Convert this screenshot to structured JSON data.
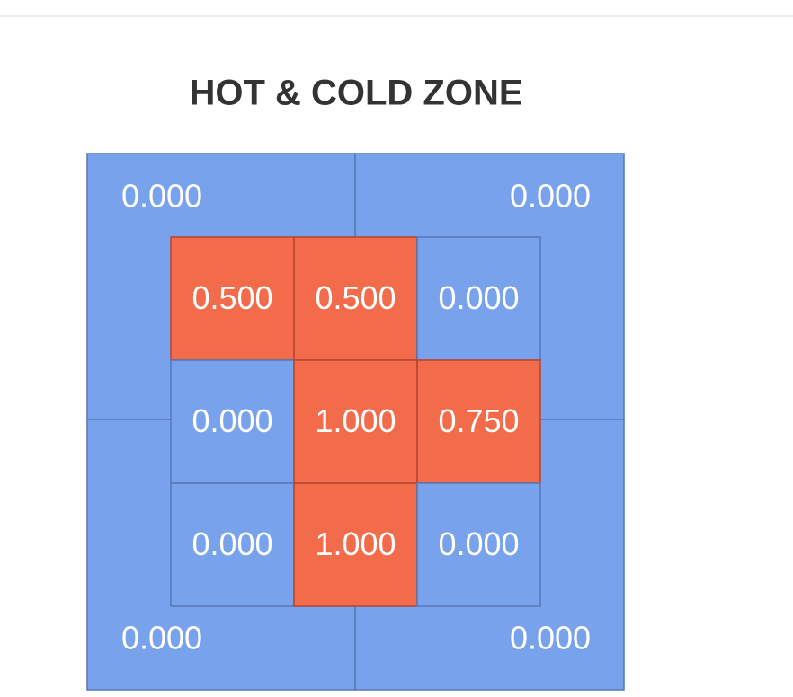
{
  "chart_data": {
    "type": "zone",
    "title": "HOT & COLD ZONE",
    "outer_values": [
      0,
      0,
      0,
      0
    ],
    "outer_value_labels": [
      "0.000",
      "0.000",
      "0.000",
      "0.000"
    ],
    "outer_color": "#78a3ec",
    "inner_values": [
      [
        0.5,
        0.5,
        0
      ],
      [
        0,
        1,
        0.75
      ],
      [
        0,
        1,
        0
      ]
    ],
    "inner_value_labels": [
      [
        "0.500",
        "0.500",
        "0.000"
      ],
      [
        "0.000",
        "1.000",
        "0.750"
      ],
      [
        "0.000",
        "1.000",
        "0.000"
      ]
    ],
    "inner_colors": [
      [
        "#f26b4a",
        "#f26b4a",
        "#78a3ec"
      ],
      [
        "#78a3ec",
        "#f26b4a",
        "#f26b4a"
      ],
      [
        "#78a3ec",
        "#f26b4a",
        "#78a3ec"
      ]
    ]
  }
}
